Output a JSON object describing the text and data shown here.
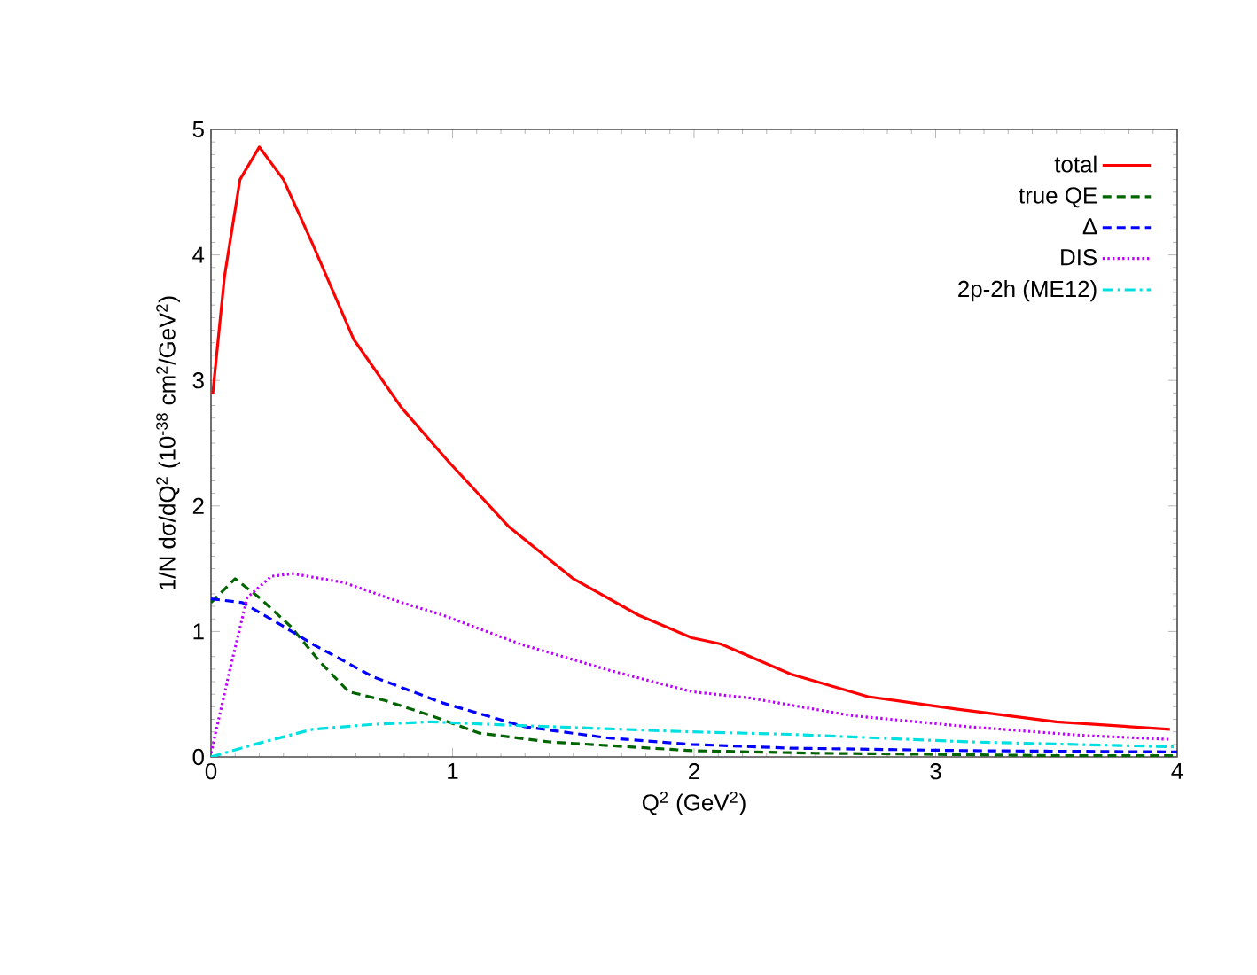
{
  "chart_data": {
    "type": "line",
    "xlabel": "Q$^{2}$ (GeV$^{2}$)",
    "ylabel": "1/N dσ/dQ$^{2}$ (10$^{-38}$ cm$^{2}$/GeV$^{2}$)",
    "xlim": [
      0,
      4
    ],
    "ylim": [
      0,
      5
    ],
    "xticks": [
      0,
      1,
      2,
      3,
      4
    ],
    "yticks": [
      0,
      1,
      2,
      3,
      4,
      5
    ],
    "grid": false,
    "legend": "top right",
    "marker": "none",
    "series": [
      {
        "name": "total",
        "color": "#ff0000",
        "line_style": "solid",
        "x": [
          0.007,
          0.056,
          0.12,
          0.2,
          0.3,
          0.42,
          0.59,
          0.79,
          0.98,
          1.23,
          1.5,
          1.77,
          1.99,
          2.11,
          2.4,
          2.72,
          3.09,
          3.5,
          3.97
        ],
        "values": [
          2.89,
          3.83,
          4.6,
          4.86,
          4.6,
          4.09,
          3.33,
          2.78,
          2.36,
          1.84,
          1.42,
          1.13,
          0.95,
          0.9,
          0.66,
          0.48,
          0.38,
          0.28,
          0.22
        ]
      },
      {
        "name": "true QE",
        "color": "#006400",
        "line_style": "dashed",
        "x": [
          0,
          0.1,
          0.2,
          0.33,
          0.45,
          0.57,
          0.72,
          0.91,
          1.11,
          1.4,
          1.99,
          2.5,
          3,
          3.5,
          4
        ],
        "values": [
          1.23,
          1.42,
          1.27,
          1.04,
          0.76,
          0.52,
          0.45,
          0.33,
          0.19,
          0.12,
          0.05,
          0.03,
          0.02,
          0.01,
          0.01
        ]
      },
      {
        "name": "Δ",
        "color": "#0000ff",
        "line_style": "dashed",
        "x": [
          0,
          0.13,
          0.3,
          0.42,
          0.67,
          0.96,
          1.3,
          1.65,
          1.99,
          2.4,
          3.14,
          4
        ],
        "values": [
          1.26,
          1.23,
          1.04,
          0.9,
          0.64,
          0.43,
          0.24,
          0.15,
          0.1,
          0.07,
          0.05,
          0.04
        ]
      },
      {
        "name": "DIS",
        "color": "#c000ff",
        "line_style": "dotted",
        "x": [
          0,
          0.08,
          0.15,
          0.25,
          0.34,
          0.55,
          0.79,
          0.96,
          1.28,
          1.65,
          1.99,
          2.23,
          2.65,
          3.14,
          3.62,
          3.97
        ],
        "values": [
          0.03,
          0.71,
          1.27,
          1.44,
          1.46,
          1.39,
          1.23,
          1.13,
          0.9,
          0.69,
          0.52,
          0.47,
          0.33,
          0.24,
          0.17,
          0.14
        ]
      },
      {
        "name": "2p-2h (ME12)",
        "color": "#00e0e0",
        "line_style": "dashdot",
        "x": [
          0,
          0.18,
          0.42,
          0.67,
          0.91,
          1.28,
          1.99,
          2.4,
          3.14,
          4
        ],
        "values": [
          0,
          0.1,
          0.22,
          0.26,
          0.28,
          0.25,
          0.2,
          0.18,
          0.12,
          0.08
        ]
      }
    ]
  }
}
